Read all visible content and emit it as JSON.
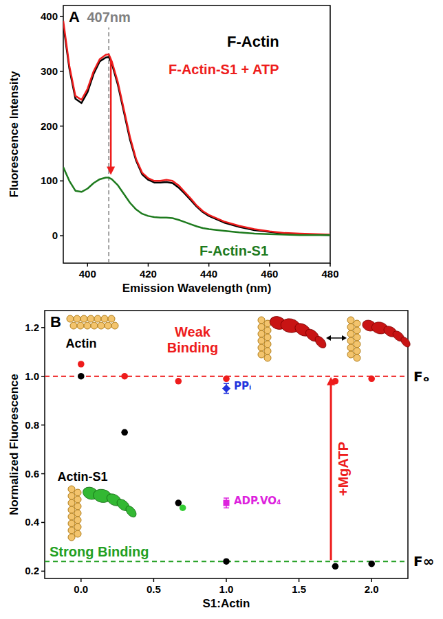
{
  "chart_data": [
    {
      "type": "line",
      "panel_label": "A",
      "x_label": "Emission Wavelength (nm)",
      "y_label": "Fluorescence Intensity",
      "xlim": [
        392,
        480
      ],
      "xticks": [
        400,
        420,
        440,
        460,
        480
      ],
      "ylim": [
        -50,
        420
      ],
      "yticks": [
        0,
        100,
        200,
        300,
        400
      ],
      "x": [
        392,
        394,
        396,
        398,
        400,
        402,
        404,
        406,
        407,
        408,
        410,
        412,
        414,
        416,
        418,
        420,
        422,
        424,
        426,
        428,
        430,
        432,
        434,
        436,
        438,
        440,
        445,
        450,
        455,
        460,
        465,
        470,
        475,
        480
      ],
      "series": [
        {
          "name": "F-Actin",
          "color": "#000000",
          "values": [
            385,
            305,
            250,
            242,
            262,
            295,
            318,
            325,
            326,
            314,
            275,
            225,
            175,
            137,
            112,
            102,
            97,
            97,
            98,
            96,
            88,
            77,
            65,
            53,
            43,
            36,
            24,
            16,
            10,
            7,
            4,
            3,
            2,
            1
          ]
        },
        {
          "name": "F-Actin-S1 + ATP",
          "color": "#ee1c1c",
          "values": [
            392,
            310,
            255,
            248,
            268,
            300,
            322,
            330,
            331,
            318,
            280,
            230,
            180,
            140,
            115,
            105,
            100,
            100,
            102,
            100,
            92,
            80,
            68,
            55,
            45,
            38,
            26,
            18,
            12,
            8,
            5,
            4,
            3,
            2
          ]
        },
        {
          "name": "F-Actin-S1",
          "color": "#1e7b1e",
          "values": [
            125,
            100,
            82,
            80,
            86,
            96,
            103,
            106,
            106,
            103,
            92,
            76,
            60,
            48,
            40,
            36,
            34,
            33,
            33,
            32,
            29,
            25,
            21,
            17,
            14,
            12,
            9,
            6,
            4,
            3,
            2,
            1,
            1,
            1
          ]
        }
      ],
      "annotations": [
        {
          "text": "407nm",
          "x": 407,
          "color": "#808080"
        }
      ]
    },
    {
      "type": "scatter",
      "panel_label": "B",
      "x_label": "S1:Actin",
      "y_label": "Normalized Fluorescence",
      "xlim": [
        -0.25,
        2.25
      ],
      "xticks": [
        {
          "value": 0,
          "label": "0.0"
        },
        0.5,
        {
          "value": 1,
          "label": "1.0"
        },
        1.5,
        {
          "value": 2,
          "label": "2.0"
        }
      ],
      "ylim": [
        0.17,
        1.27
      ],
      "yticks": [
        0.2,
        0.4,
        0.6,
        0.8,
        {
          "value": 1,
          "label": "1.0"
        },
        1.2
      ],
      "series": [
        {
          "color": "#000000",
          "marker": "circle",
          "x": [
            0,
            0.3,
            0.67,
            1.0,
            1.75,
            2.0
          ],
          "values": [
            1.0,
            0.77,
            0.48,
            0.24,
            0.22,
            0.23
          ]
        },
        {
          "color": "#ee1c1c",
          "marker": "circle",
          "x": [
            0,
            0.3,
            0.67,
            1.0,
            1.75,
            2.0
          ],
          "values": [
            1.05,
            1.0,
            0.98,
            0.99,
            0.98,
            0.99
          ]
        },
        {
          "color": "#33cc33",
          "marker": "circle",
          "x": [
            0.7
          ],
          "values": [
            0.46
          ]
        },
        {
          "name": "PPᵢ",
          "color": "#2233dd",
          "marker": "diamond",
          "x": [
            1.0
          ],
          "values": [
            0.95
          ],
          "errors": [
            0.02
          ]
        },
        {
          "name": "ADP.VO₄",
          "color": "#dd22dd",
          "marker": "square",
          "x": [
            1.0
          ],
          "values": [
            0.48
          ],
          "errors": [
            0.02
          ]
        }
      ],
      "reference_lines": [
        {
          "value": 1.0,
          "label": "Fₒ",
          "color": "#ee1c1c"
        },
        {
          "value": 0.24,
          "label": "F∞",
          "color": "#22a022"
        }
      ],
      "annotations": [
        {
          "text": "Actin",
          "color": "#000000"
        },
        {
          "text": "Weak Binding",
          "color": "#ee1c1c"
        },
        {
          "text": "Actin-S1",
          "color": "#000000"
        },
        {
          "text": "Strong Binding",
          "color": "#22a022"
        },
        {
          "text": "+MgATP",
          "color": "#ee1c1c"
        }
      ]
    }
  ]
}
